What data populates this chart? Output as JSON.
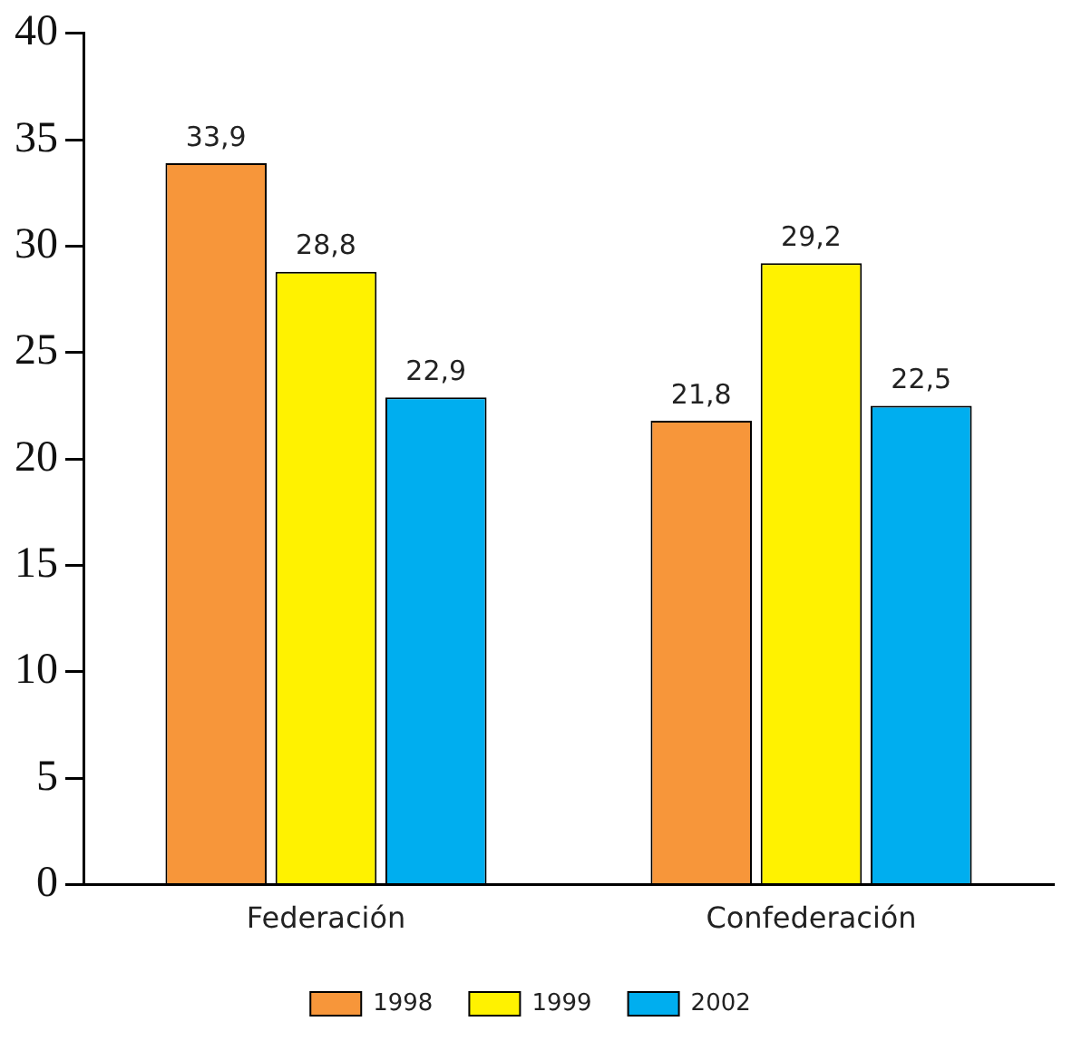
{
  "chart_data": {
    "type": "bar",
    "categories": [
      "Federación",
      "Confederación"
    ],
    "series": [
      {
        "name": "1998",
        "color": "#f7963a",
        "values": [
          33.9,
          21.8
        ],
        "value_labels": [
          "33,9",
          "21,8"
        ]
      },
      {
        "name": "1999",
        "color": "#fff200",
        "values": [
          28.8,
          29.2
        ],
        "value_labels": [
          "28,8",
          "29,2"
        ]
      },
      {
        "name": "2002",
        "color": "#00aeef",
        "values": [
          22.9,
          22.5
        ],
        "value_labels": [
          "22,9",
          "22,5"
        ]
      }
    ],
    "ylim": [
      0,
      40
    ],
    "yticks": [
      0,
      5,
      10,
      15,
      20,
      25,
      30,
      35,
      40
    ],
    "grid": false,
    "legend": "bottom"
  }
}
